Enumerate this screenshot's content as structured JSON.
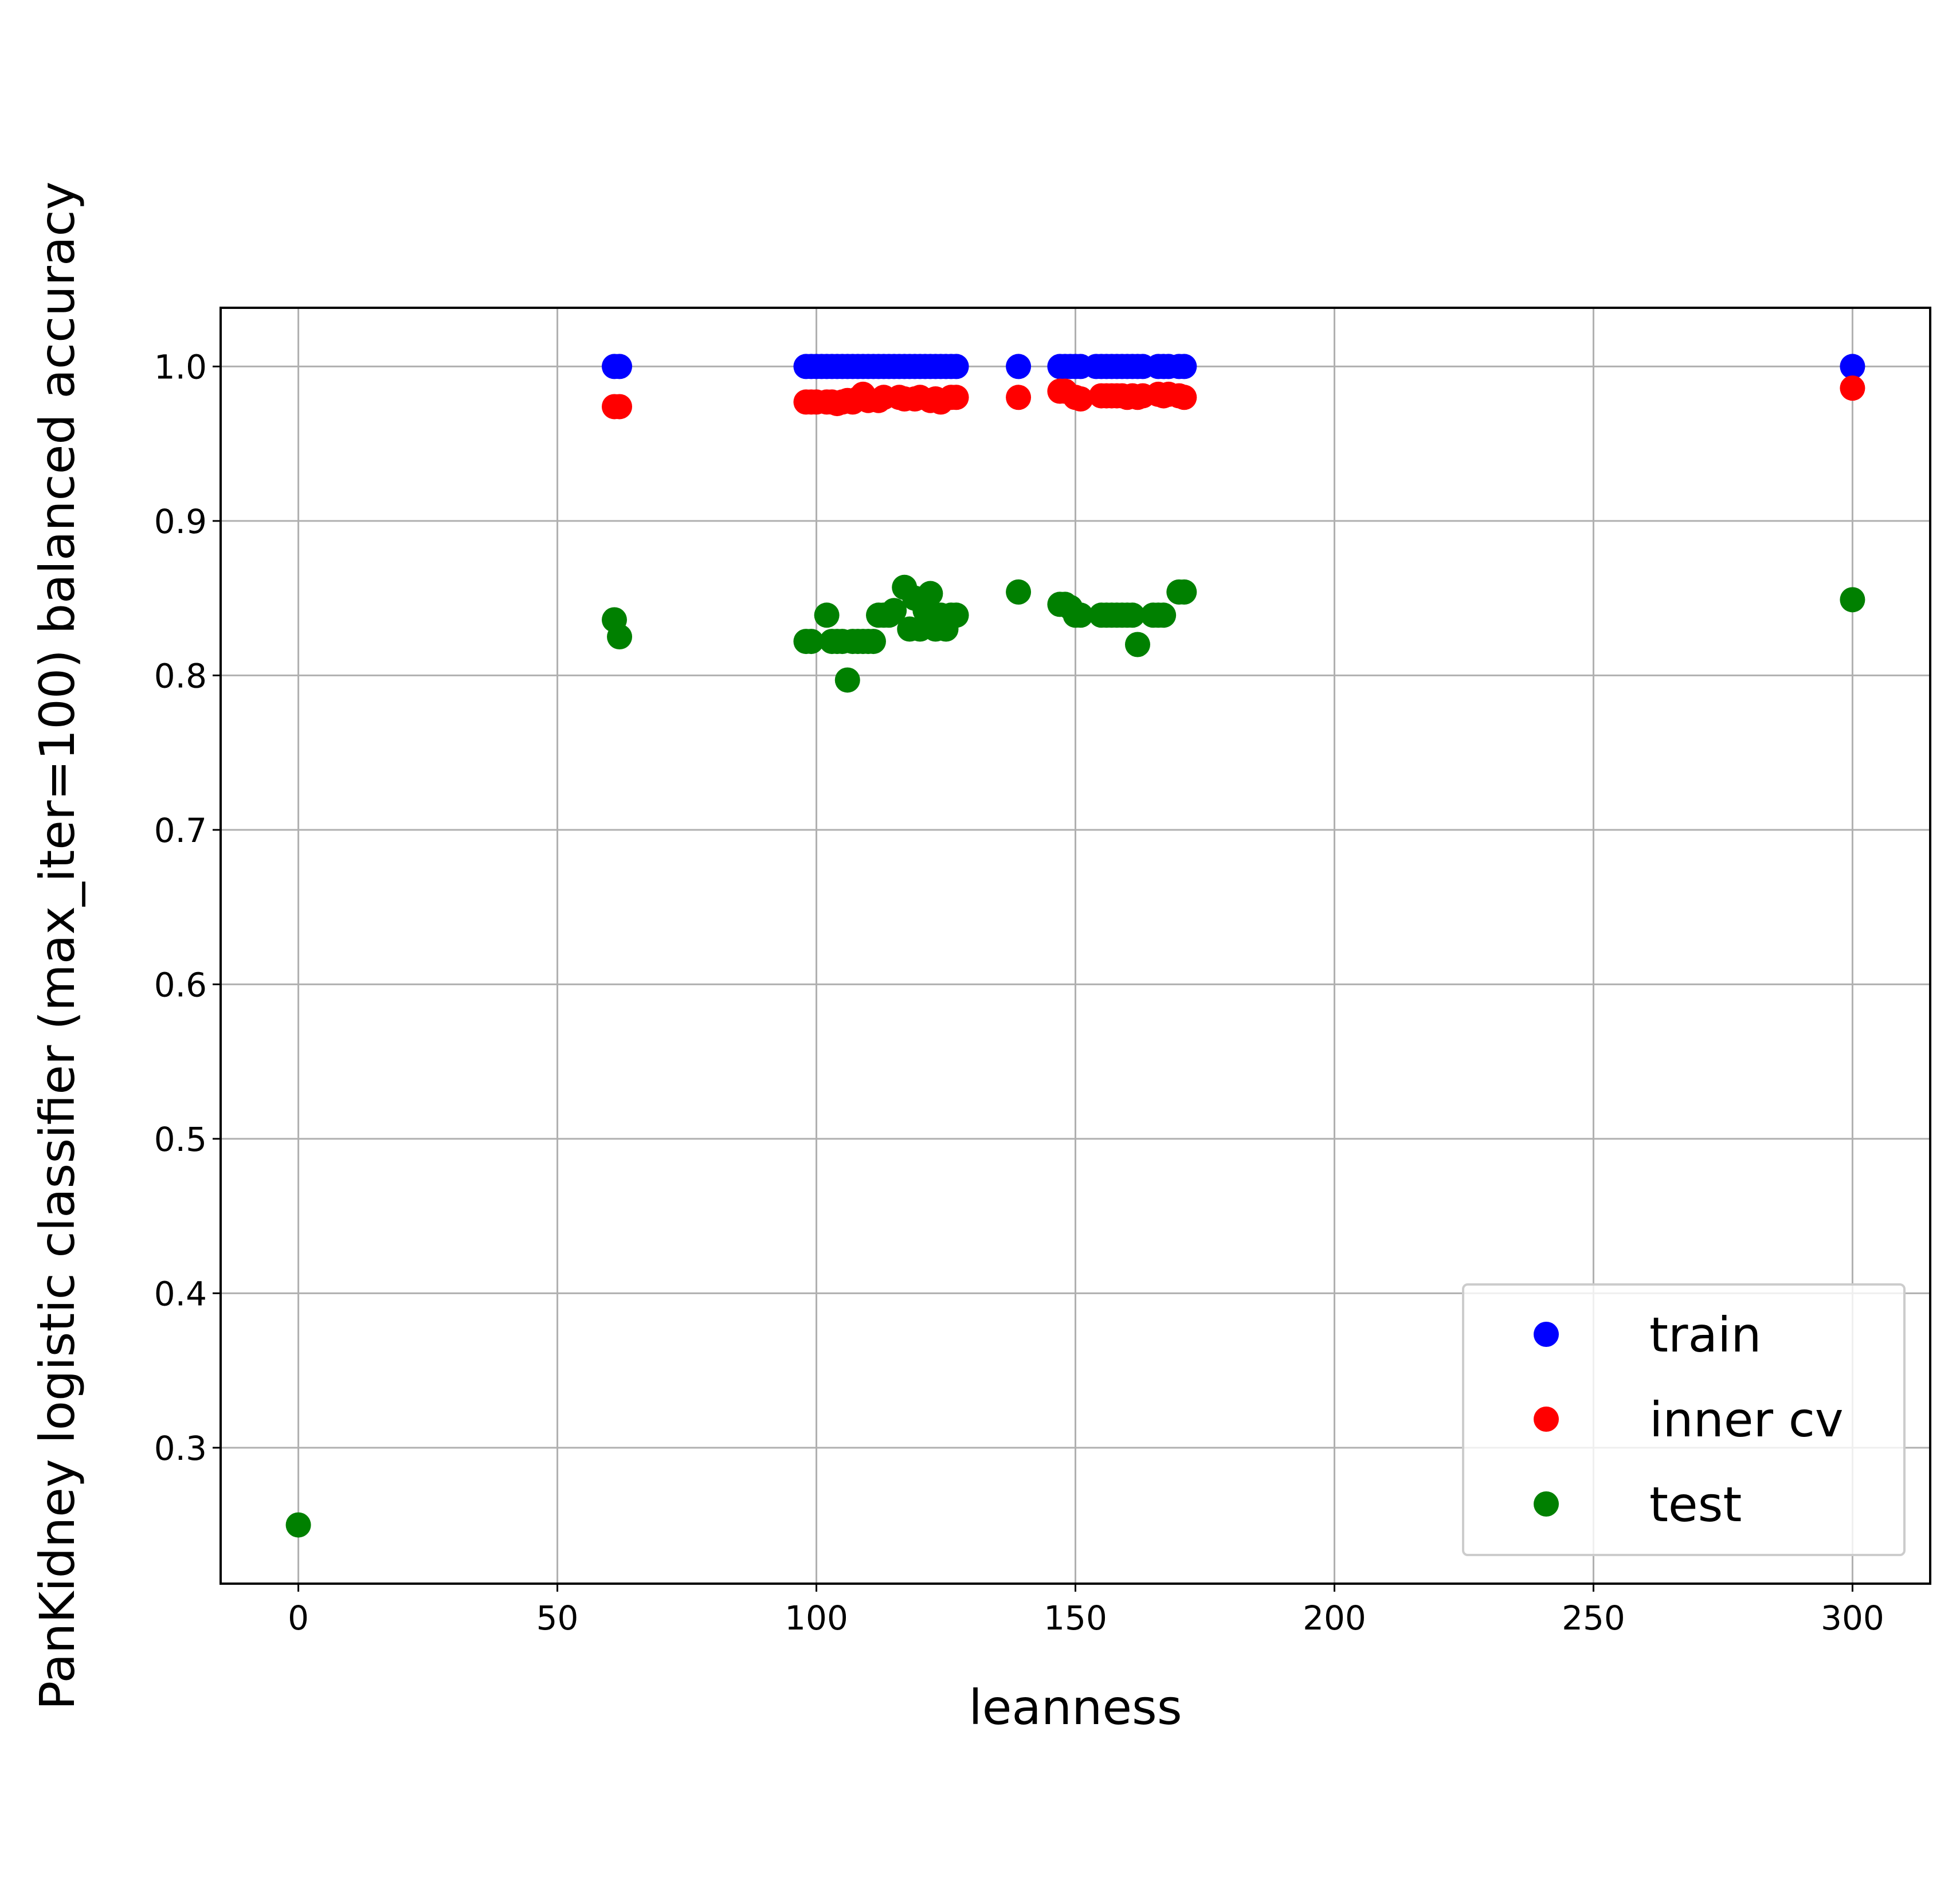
{
  "chart_data": {
    "type": "scatter",
    "title": "",
    "xlabel": "leanness",
    "ylabel": "PanKidney logistic classifier (max_iter=100) balanced accuracy",
    "xlim": [
      -15,
      315
    ],
    "ylim": [
      0.212,
      1.038
    ],
    "x_ticks": [
      0,
      50,
      100,
      150,
      200,
      250,
      300
    ],
    "x_tick_labels": [
      "0",
      "50",
      "100",
      "150",
      "200",
      "250",
      "300"
    ],
    "y_ticks": [
      0.3,
      0.4,
      0.5,
      0.6,
      0.7,
      0.8,
      0.9,
      1.0
    ],
    "y_tick_labels": [
      "0.3",
      "0.4",
      "0.5",
      "0.6",
      "0.7",
      "0.8",
      "0.9",
      "1.0"
    ],
    "grid": true,
    "legend_position": "lower-right",
    "series": [
      {
        "name": "train",
        "color": "#0000ff",
        "x": [
          61,
          62,
          98,
          99,
          100,
          101,
          102,
          103,
          104,
          105,
          106,
          107,
          108,
          109,
          110,
          111,
          112,
          113,
          114,
          115,
          116,
          117,
          118,
          119,
          120,
          121,
          122,
          123,
          124,
          125,
          126,
          127,
          139,
          147,
          148,
          149,
          150,
          151,
          154,
          155,
          156,
          157,
          158,
          159,
          160,
          161,
          162,
          163,
          166,
          167,
          168,
          170,
          171,
          300
        ],
        "y": [
          1.0,
          1.0,
          1.0,
          1.0,
          1.0,
          1.0,
          1.0,
          1.0,
          1.0,
          1.0,
          1.0,
          1.0,
          1.0,
          1.0,
          1.0,
          1.0,
          1.0,
          1.0,
          1.0,
          1.0,
          1.0,
          1.0,
          1.0,
          1.0,
          1.0,
          1.0,
          1.0,
          1.0,
          1.0,
          1.0,
          1.0,
          1.0,
          1.0,
          1.0,
          1.0,
          1.0,
          1.0,
          1.0,
          1.0,
          1.0,
          1.0,
          1.0,
          1.0,
          1.0,
          1.0,
          1.0,
          1.0,
          1.0,
          1.0,
          1.0,
          1.0,
          1.0,
          1.0,
          1.0
        ]
      },
      {
        "name": "inner cv",
        "color": "#ff0000",
        "x": [
          61,
          62,
          98,
          99,
          100,
          102,
          103,
          104,
          105,
          106,
          107,
          108,
          109,
          110,
          112,
          113,
          116,
          117,
          119,
          120,
          122,
          123,
          124,
          126,
          127,
          139,
          147,
          148,
          150,
          151,
          155,
          156,
          157,
          158,
          159,
          160,
          161,
          162,
          163,
          166,
          167,
          168,
          170,
          171,
          300
        ],
        "y": [
          0.974,
          0.974,
          0.977,
          0.977,
          0.977,
          0.977,
          0.977,
          0.976,
          0.977,
          0.978,
          0.977,
          0.979,
          0.982,
          0.978,
          0.978,
          0.98,
          0.98,
          0.979,
          0.979,
          0.98,
          0.978,
          0.979,
          0.977,
          0.98,
          0.98,
          0.98,
          0.984,
          0.984,
          0.98,
          0.979,
          0.981,
          0.981,
          0.981,
          0.981,
          0.981,
          0.98,
          0.981,
          0.98,
          0.981,
          0.982,
          0.981,
          0.982,
          0.981,
          0.98,
          0.986
        ]
      },
      {
        "name": "test",
        "color": "#008000",
        "x": [
          0,
          61,
          62,
          98,
          99,
          102,
          103,
          104,
          105,
          106,
          107,
          108,
          109,
          110,
          111,
          112,
          113,
          114,
          115,
          117,
          118,
          119,
          120,
          121,
          122,
          123,
          124,
          125,
          126,
          127,
          139,
          147,
          148,
          149,
          150,
          151,
          155,
          156,
          157,
          158,
          159,
          160,
          161,
          162,
          165,
          166,
          167,
          170,
          171,
          300
        ],
        "y": [
          0.25,
          0.836,
          0.825,
          0.822,
          0.822,
          0.839,
          0.822,
          0.822,
          0.822,
          0.797,
          0.822,
          0.822,
          0.822,
          0.822,
          0.822,
          0.839,
          0.839,
          0.839,
          0.842,
          0.857,
          0.83,
          0.85,
          0.83,
          0.842,
          0.853,
          0.83,
          0.839,
          0.83,
          0.839,
          0.839,
          0.854,
          0.846,
          0.846,
          0.844,
          0.839,
          0.839,
          0.839,
          0.839,
          0.839,
          0.839,
          0.839,
          0.839,
          0.839,
          0.82,
          0.839,
          0.839,
          0.839,
          0.854,
          0.854,
          0.849
        ]
      }
    ]
  }
}
